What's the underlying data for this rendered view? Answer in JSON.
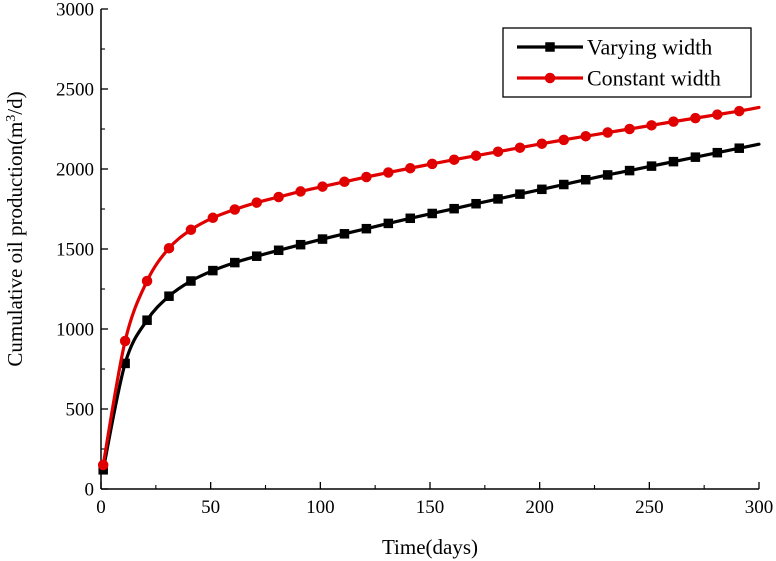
{
  "chart_data": {
    "type": "line",
    "title": "",
    "xlabel": "Time(days)",
    "ylabel_parts": [
      "Cumulative oil production(m",
      "3",
      "/d)"
    ],
    "xlim": [
      0,
      300
    ],
    "ylim": [
      0,
      3000
    ],
    "xticks": [
      0,
      50,
      100,
      150,
      200,
      250,
      300
    ],
    "yticks": [
      0,
      500,
      1000,
      1500,
      2000,
      2500,
      3000
    ],
    "grid": false,
    "legend_position": "top-right",
    "series": [
      {
        "name": "Varying width",
        "color": "#000000",
        "marker": "square",
        "x": [
          1,
          11,
          21,
          31,
          41,
          51,
          61,
          71,
          81,
          91,
          101,
          111,
          121,
          131,
          141,
          151,
          161,
          171,
          181,
          191,
          201,
          211,
          221,
          231,
          241,
          251,
          261,
          271,
          281,
          291
        ],
        "y": [
          120,
          785,
          1055,
          1205,
          1300,
          1365,
          1415,
          1455,
          1492,
          1527,
          1562,
          1595,
          1627,
          1660,
          1692,
          1722,
          1752,
          1783,
          1813,
          1843,
          1873,
          1903,
          1933,
          1963,
          1990,
          2018,
          2046,
          2074,
          2102,
          2130
        ],
        "curve_end": {
          "x": 300,
          "y": 2155
        }
      },
      {
        "name": "Constant width",
        "color": "#e00000",
        "marker": "circle",
        "x": [
          1,
          11,
          21,
          31,
          41,
          51,
          61,
          71,
          81,
          91,
          101,
          111,
          121,
          131,
          141,
          151,
          161,
          171,
          181,
          191,
          201,
          211,
          221,
          231,
          241,
          251,
          261,
          271,
          281,
          291
        ],
        "y": [
          150,
          925,
          1300,
          1505,
          1620,
          1695,
          1747,
          1790,
          1825,
          1860,
          1890,
          1920,
          1950,
          1978,
          2005,
          2032,
          2058,
          2083,
          2108,
          2133,
          2158,
          2182,
          2205,
          2228,
          2250,
          2273,
          2296,
          2318,
          2340,
          2362
        ],
        "curve_end": {
          "x": 300,
          "y": 2385
        }
      }
    ]
  }
}
